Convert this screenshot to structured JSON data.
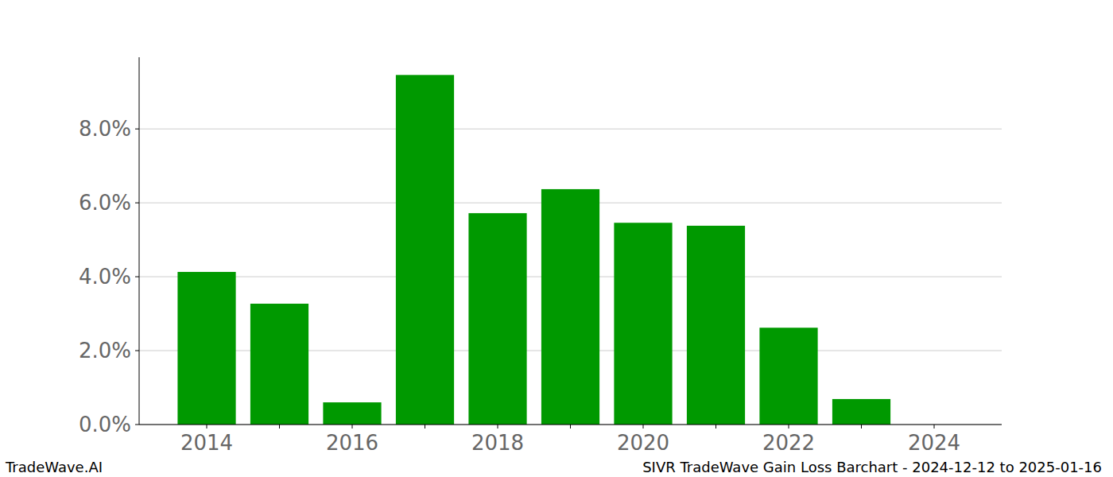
{
  "chart_data": {
    "type": "bar",
    "title": "SIVR TradeWave Gain Loss Barchart - 2024-12-12 to 2025-01-16",
    "source": "TradeWave.AI",
    "categories": [
      "2014",
      null,
      "2016",
      null,
      "2018",
      null,
      "2020",
      null,
      "2022",
      null,
      "2024"
    ],
    "values": [
      4.13,
      3.27,
      0.6,
      9.46,
      5.72,
      6.37,
      5.46,
      5.38,
      2.62,
      0.69,
      0
    ],
    "color": "#009900",
    "ylim": [
      0,
      9.94
    ],
    "yticks": [
      {
        "value": 0,
        "label": "0.0%"
      },
      {
        "value": 2,
        "label": "2.0%"
      },
      {
        "value": 4,
        "label": "4.0%"
      },
      {
        "value": 6,
        "label": "6.0%"
      },
      {
        "value": 8,
        "label": "8.0%"
      }
    ],
    "grid": true
  }
}
